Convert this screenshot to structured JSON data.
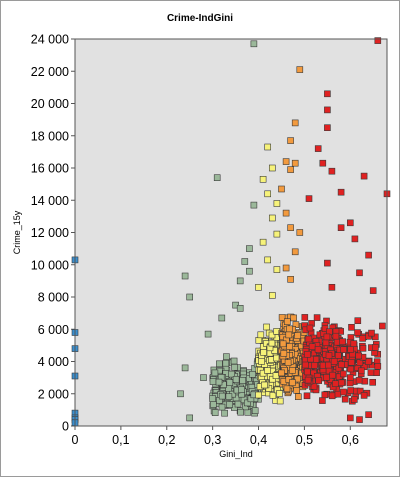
{
  "chart_data": {
    "type": "scatter",
    "title": "Crime-IndGini",
    "xlabel": "Gini_Ind",
    "ylabel": "Crime_15y",
    "xlim": [
      0,
      0.68
    ],
    "ylim": [
      0,
      24000
    ],
    "x_ticks": [
      "0",
      "0,1",
      "0,2",
      "0,3",
      "0,4",
      "0,5",
      "0,6"
    ],
    "x_tick_values": [
      0,
      0.1,
      0.2,
      0.3,
      0.4,
      0.5,
      0.6
    ],
    "y_ticks": [
      "0",
      "2 000",
      "4 000",
      "6 000",
      "8 000",
      "10 000",
      "12 000",
      "14 000",
      "16 000",
      "18 000",
      "20 000",
      "22 000",
      "24 000"
    ],
    "y_tick_values": [
      0,
      2000,
      4000,
      6000,
      8000,
      10000,
      12000,
      14000,
      16000,
      18000,
      20000,
      22000,
      24000
    ],
    "grid": false,
    "legend": "none",
    "background_color": "#e1e1e1",
    "group_colors": {
      "blue": "#3a8fcf",
      "green": "#9bb89a",
      "yellow": "#f6f27a",
      "orange": "#f29a3e",
      "red": "#e02121"
    },
    "groups": [
      {
        "color_key": "blue",
        "x_range": [
          0,
          0.003
        ],
        "points": [
          [
            0,
            10300
          ],
          [
            0,
            5800
          ],
          [
            0,
            4800
          ],
          [
            0,
            3100
          ],
          [
            0,
            800
          ],
          [
            0,
            500
          ],
          [
            0,
            400
          ],
          [
            0,
            200
          ]
        ]
      },
      {
        "color_key": "green",
        "x_range": [
          0.225,
          0.399
        ],
        "points": [
          [
            0.24,
            9300
          ],
          [
            0.25,
            8000
          ],
          [
            0.24,
            3600
          ],
          [
            0.31,
            15400
          ],
          [
            0.39,
            23700
          ],
          [
            0.29,
            5700
          ],
          [
            0.36,
            9000
          ],
          [
            0.37,
            10200
          ],
          [
            0.35,
            7500
          ],
          [
            0.38,
            9600
          ],
          [
            0.39,
            13700
          ],
          [
            0.38,
            11000
          ],
          [
            0.3,
            1700
          ],
          [
            0.23,
            2000
          ],
          [
            0.25,
            500
          ],
          [
            0.28,
            3000
          ],
          [
            0.32,
            6700
          ],
          [
            0.33,
            4300
          ],
          [
            0.36,
            7300
          ]
        ]
      },
      {
        "color_key": "yellow",
        "x_range": [
          0.4,
          0.449
        ],
        "points": [
          [
            0.42,
            17300
          ],
          [
            0.43,
            16000
          ],
          [
            0.41,
            15300
          ],
          [
            0.42,
            14400
          ],
          [
            0.44,
            13800
          ],
          [
            0.43,
            12900
          ],
          [
            0.41,
            11400
          ],
          [
            0.42,
            10300
          ],
          [
            0.44,
            9700
          ],
          [
            0.4,
            8600
          ],
          [
            0.43,
            8100
          ],
          [
            0.44,
            11900
          ]
        ]
      },
      {
        "color_key": "orange",
        "x_range": [
          0.45,
          0.499
        ],
        "points": [
          [
            0.49,
            22100
          ],
          [
            0.48,
            18800
          ],
          [
            0.47,
            17700
          ],
          [
            0.46,
            16400
          ],
          [
            0.47,
            15900
          ],
          [
            0.48,
            16300
          ],
          [
            0.45,
            14700
          ],
          [
            0.46,
            13200
          ],
          [
            0.47,
            12300
          ],
          [
            0.49,
            12000
          ],
          [
            0.48,
            10800
          ],
          [
            0.46,
            9800
          ],
          [
            0.47,
            9100
          ]
        ]
      },
      {
        "color_key": "red",
        "x_range": [
          0.5,
          0.68
        ],
        "points": [
          [
            0.66,
            23900
          ],
          [
            0.55,
            20600
          ],
          [
            0.55,
            19600
          ],
          [
            0.55,
            18500
          ],
          [
            0.53,
            17200
          ],
          [
            0.54,
            16300
          ],
          [
            0.56,
            15800
          ],
          [
            0.63,
            15500
          ],
          [
            0.58,
            14500
          ],
          [
            0.68,
            14400
          ],
          [
            0.51,
            14100
          ],
          [
            0.6,
            12600
          ],
          [
            0.58,
            12300
          ],
          [
            0.61,
            11600
          ],
          [
            0.64,
            10600
          ],
          [
            0.62,
            9500
          ],
          [
            0.55,
            10100
          ],
          [
            0.56,
            8600
          ],
          [
            0.65,
            8400
          ],
          [
            0.67,
            6200
          ],
          [
            0.66,
            3700
          ],
          [
            0.6,
            3000
          ],
          [
            0.63,
            1900
          ],
          [
            0.64,
            700
          ],
          [
            0.6,
            500
          ],
          [
            0.62,
            400
          ]
        ]
      }
    ]
  }
}
